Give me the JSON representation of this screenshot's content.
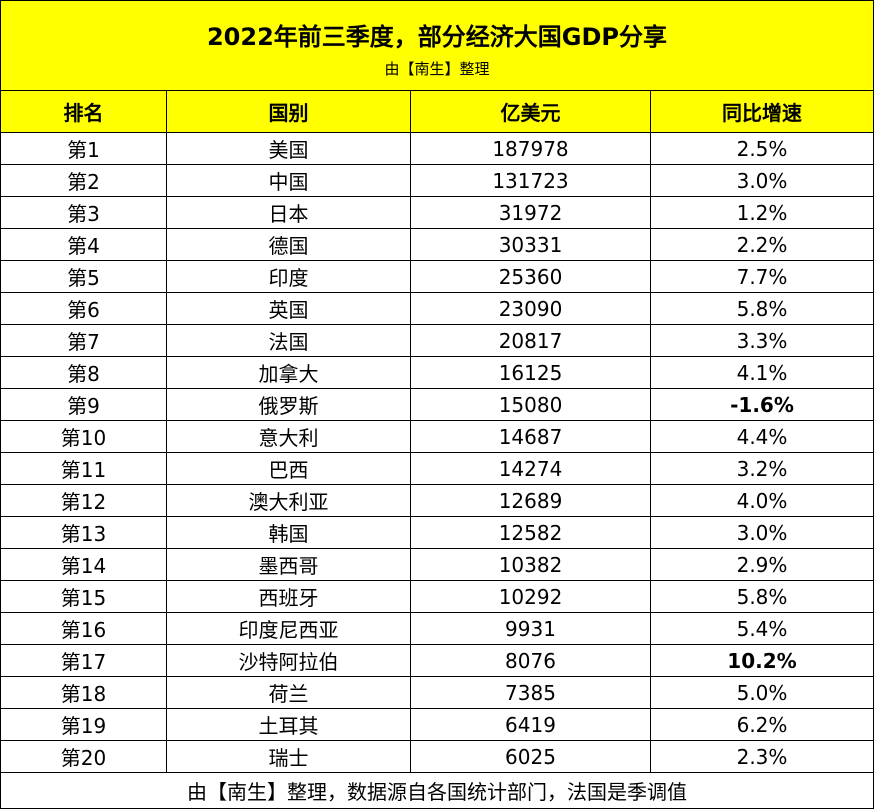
{
  "header": {
    "title": "2022年前三季度，部分经济大国GDP分享",
    "subtitle": "由【南生】整理"
  },
  "table": {
    "columns": [
      "排名",
      "国别",
      "亿美元",
      "同比增速"
    ],
    "rows": [
      [
        "第1",
        "美国",
        187978,
        "2.5%"
      ],
      [
        "第2",
        "中国",
        131723,
        "3.0%"
      ],
      [
        "第3",
        "日本",
        31972,
        "1.2%"
      ],
      [
        "第4",
        "德国",
        30331,
        "2.2%"
      ],
      [
        "第5",
        "印度",
        25360,
        "7.7%"
      ],
      [
        "第6",
        "英国",
        23090,
        "5.8%"
      ],
      [
        "第7",
        "法国",
        20817,
        "3.3%"
      ],
      [
        "第8",
        "加拿大",
        16125,
        "4.1%"
      ],
      [
        "第9",
        "俄罗斯",
        15080,
        "-1.6%"
      ],
      [
        "第10",
        "意大利",
        14687,
        "4.4%"
      ],
      [
        "第11",
        "巴西",
        14274,
        "3.2%"
      ],
      [
        "第12",
        "澳大利亚",
        12689,
        "4.0%"
      ],
      [
        "第13",
        "韩国",
        12582,
        "3.0%"
      ],
      [
        "第14",
        "墨西哥",
        10382,
        "2.9%"
      ],
      [
        "第15",
        "西班牙",
        10292,
        "5.8%"
      ],
      [
        "第16",
        "印度尼西亚",
        9931,
        "5.4%"
      ],
      [
        "第17",
        "沙特阿拉伯",
        8076,
        "10.2%"
      ],
      [
        "第18",
        "荷兰",
        7385,
        "5.0%"
      ],
      [
        "第19",
        "土耳其",
        6419,
        "6.2%"
      ],
      [
        "第20",
        "瑞士",
        6025,
        "2.3%"
      ]
    ]
  },
  "footer": "由【南生】整理，数据源自各国统计部门，法国是季调值"
}
